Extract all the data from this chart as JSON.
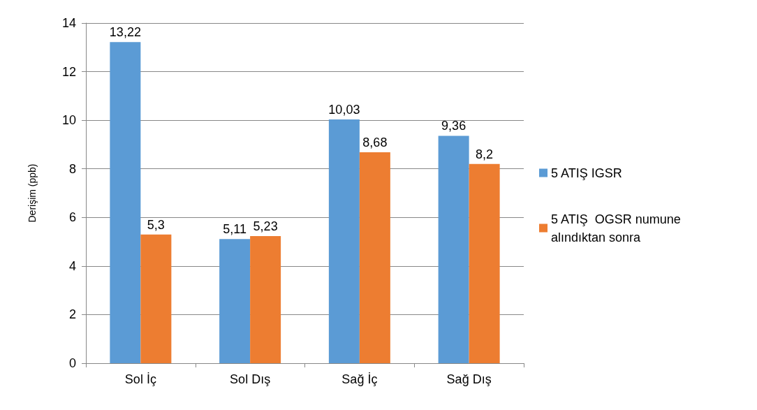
{
  "chart_data": {
    "type": "bar",
    "ylabel": "Derişim (ppb)",
    "categories": [
      "Sol İç",
      "Sol Dış",
      "Sağ İç",
      "Sağ Dış"
    ],
    "series": [
      {
        "name": "5 ATIŞ IGSR",
        "color": "#5b9bd5",
        "values": [
          13.22,
          5.11,
          10.03,
          9.36
        ],
        "value_labels": [
          "13,22",
          "5,11",
          "10,03",
          "9,36"
        ]
      },
      {
        "name": "5 ATIŞ  OGSR numune alındıktan sonra",
        "color": "#ed7d31",
        "values": [
          5.3,
          5.23,
          8.68,
          8.2
        ],
        "value_labels": [
          "5,3",
          "5,23",
          "8,68",
          "8,2"
        ]
      }
    ],
    "ylim": [
      0,
      14
    ],
    "yticks": [
      0,
      2,
      4,
      6,
      8,
      10,
      12,
      14
    ],
    "grid": "y",
    "legend": "right"
  }
}
